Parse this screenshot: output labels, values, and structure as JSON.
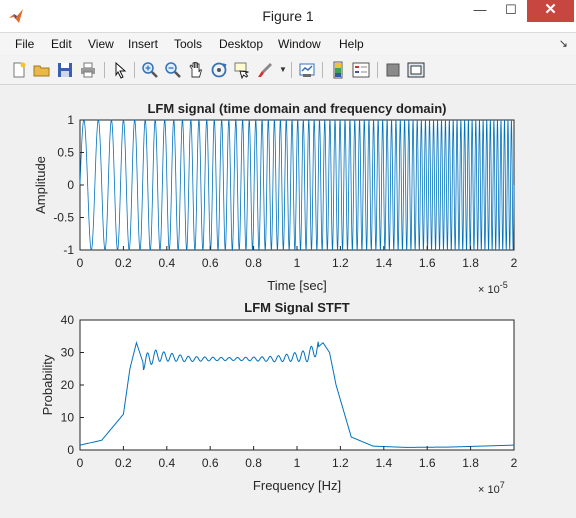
{
  "window": {
    "title": "Figure 1",
    "minimize": "—",
    "maximize": "☐",
    "close": "✕"
  },
  "menu": [
    "File",
    "Edit",
    "View",
    "Insert",
    "Tools",
    "Desktop",
    "Window",
    "Help"
  ],
  "menu_overflow": "↘",
  "toolbar": [
    "new-figure-icon",
    "open-file-icon",
    "save-icon",
    "print-icon",
    "pointer-icon",
    "zoom-in-icon",
    "zoom-out-icon",
    "pan-icon",
    "rotate-3d-icon",
    "data-cursor-icon",
    "brush-icon",
    "link-plot-icon",
    "colorbar-icon",
    "legend-icon",
    "hide-plot-tools-icon",
    "show-plot-tools-icon"
  ],
  "chart_data": [
    {
      "type": "line",
      "title": "LFM signal (time domain and frequency domain)",
      "xlabel": "Time [sec]",
      "ylabel": "Amplitude",
      "xlim": [
        0,
        2e-05
      ],
      "ylim": [
        -1,
        1
      ],
      "x_ticks": [
        "0",
        "0.2",
        "0.4",
        "0.6",
        "0.8",
        "1",
        "1.2",
        "1.4",
        "1.6",
        "1.8",
        "2"
      ],
      "y_ticks": [
        "-1",
        "-0.5",
        "0",
        "0.5",
        "1"
      ],
      "x_exponent": "× 10",
      "x_exponent_power": "-5",
      "series": [
        {
          "color": "#0072bd",
          "description_points": {
            "x": [
              0,
              2e-05
            ],
            "y": [
              -1,
              1
            ]
          },
          "start_frequency_hz": 2500000,
          "end_frequency_hz": 11500000,
          "envelope_breaks_at": [
            1.6e-05
          ]
        }
      ],
      "grid": false
    },
    {
      "type": "line",
      "title": "LFM Signal STFT",
      "xlabel": "Frequency [Hz]",
      "ylabel": "Probability",
      "xlim": [
        0,
        20000000.0
      ],
      "ylim": [
        0,
        40
      ],
      "x_ticks": [
        "0",
        "0.2",
        "0.4",
        "0.6",
        "0.8",
        "1",
        "1.2",
        "1.4",
        "1.6",
        "1.8",
        "2"
      ],
      "y_ticks": [
        "0",
        "10",
        "20",
        "30",
        "40"
      ],
      "x_exponent": "× 10",
      "x_exponent_power": "7",
      "series": [
        {
          "color": "#0072bd",
          "x": [
            0,
            1000000,
            2000000,
            2300000,
            2600000,
            2900000,
            3500000,
            5000000,
            7000000,
            9000000,
            10500000,
            11200000,
            11500000,
            11800000,
            12500000,
            13500000,
            15000000,
            17000000,
            20000000
          ],
          "y": [
            1.5,
            3,
            11,
            25,
            33,
            27,
            29,
            28,
            28,
            28,
            29,
            33,
            30,
            20,
            4,
            1.2,
            0.8,
            0.9,
            1.5
          ]
        }
      ],
      "grid": false
    }
  ]
}
